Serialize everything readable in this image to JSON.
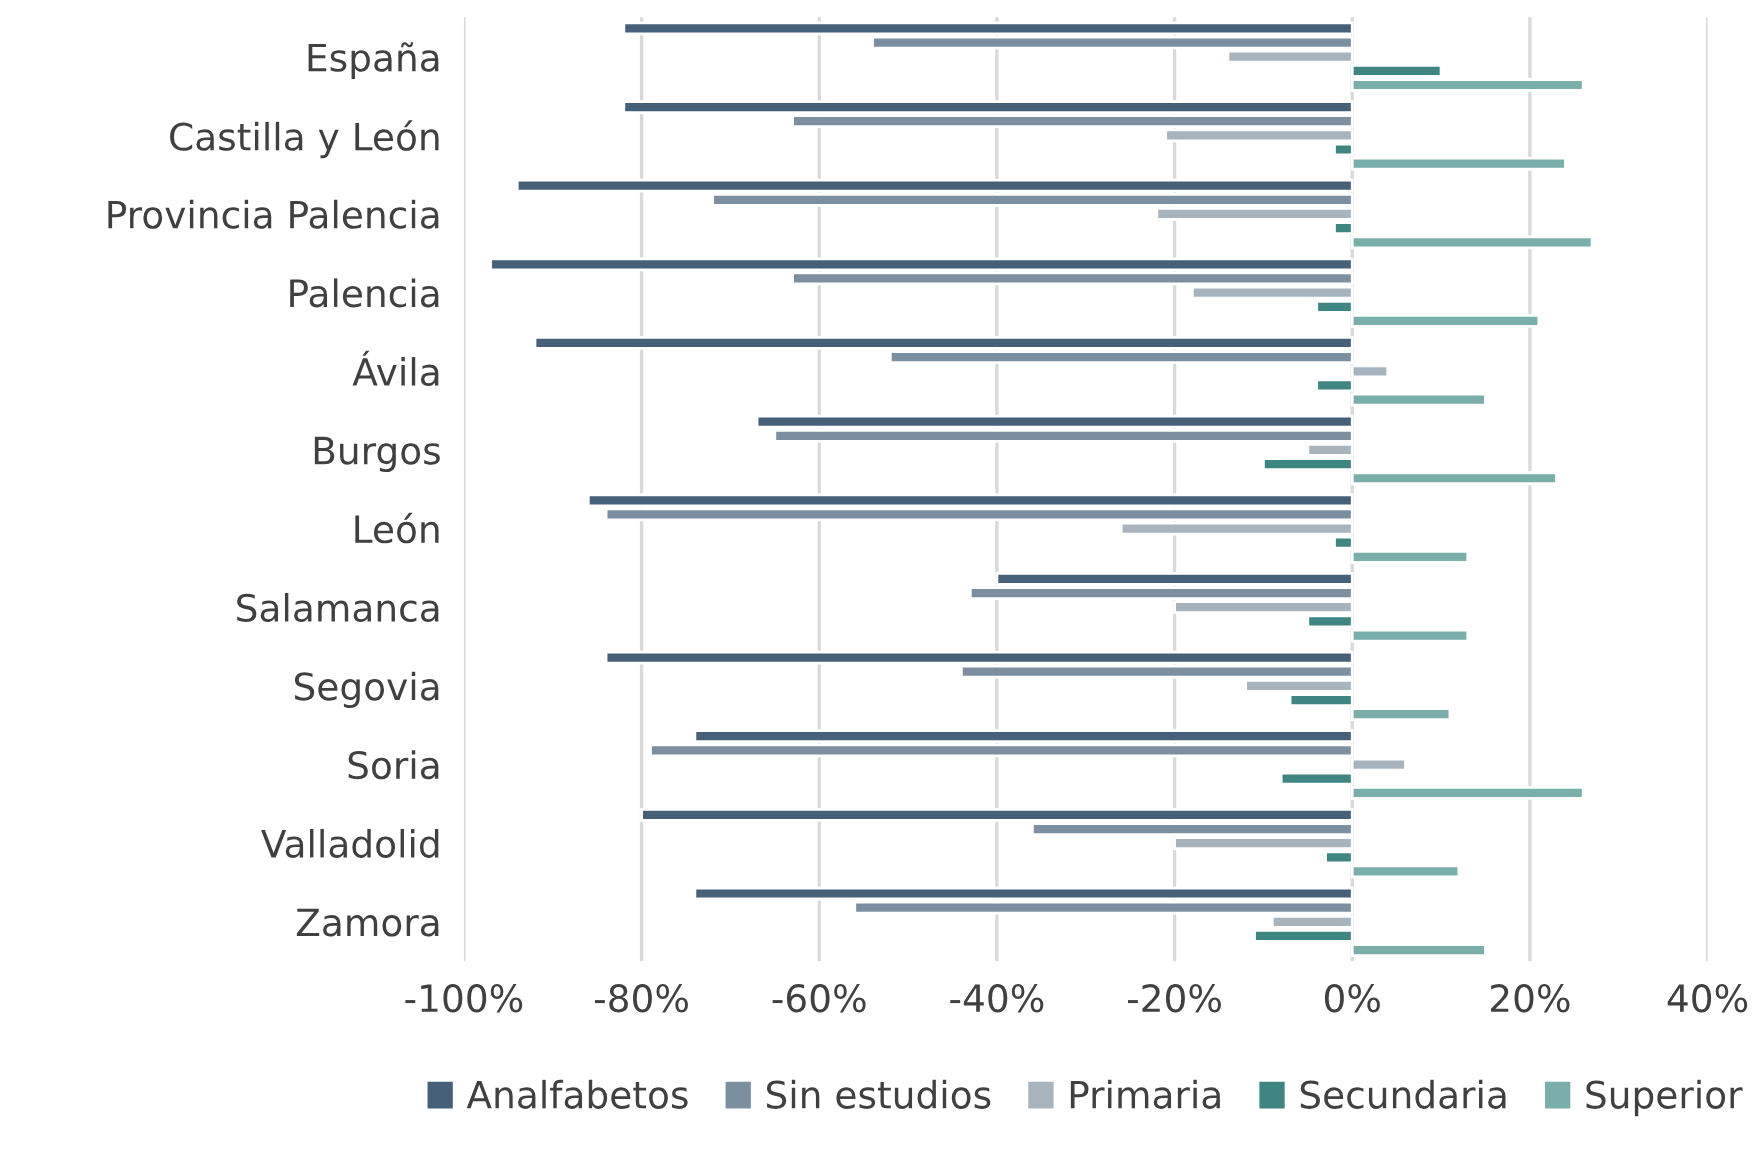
{
  "chart_data": {
    "type": "bar",
    "orientation": "horizontal",
    "categories": [
      "España",
      "Castilla y León",
      "Provincia Palencia",
      "Palencia",
      "Ávila",
      "Burgos",
      "León",
      "Salamanca",
      "Segovia",
      "Soria",
      "Valladolid",
      "Zamora"
    ],
    "series": [
      {
        "name": "Analfabetos",
        "color": "#46607a",
        "values": [
          -82,
          -82,
          -94,
          -97,
          -92,
          -67,
          -86,
          -40,
          -84,
          -74,
          -80,
          -74
        ]
      },
      {
        "name": "Sin estudios",
        "color": "#7b8fa1",
        "values": [
          -54,
          -63,
          -72,
          -63,
          -52,
          -65,
          -84,
          -43,
          -44,
          -79,
          -36,
          -56
        ]
      },
      {
        "name": "Primaria",
        "color": "#a7b4bd",
        "values": [
          -14,
          -21,
          -22,
          -18,
          4,
          -5,
          -26,
          -20,
          -12,
          6,
          -20,
          -9
        ]
      },
      {
        "name": "Secundaria",
        "color": "#3f8582",
        "values": [
          10,
          -2,
          -2,
          -4,
          -4,
          -10,
          -2,
          -5,
          -7,
          -8,
          -3,
          -11
        ]
      },
      {
        "name": "Superior",
        "color": "#7aaeaa",
        "values": [
          26,
          24,
          27,
          21,
          15,
          23,
          13,
          13,
          11,
          26,
          12,
          15
        ]
      }
    ],
    "xlim": [
      -100,
      40
    ],
    "xticks": [
      {
        "value": -100,
        "label": "-100%"
      },
      {
        "value": -80,
        "label": "-80%"
      },
      {
        "value": -60,
        "label": "-60%"
      },
      {
        "value": -40,
        "label": "-40%"
      },
      {
        "value": -20,
        "label": "-20%"
      },
      {
        "value": 0,
        "label": "0%"
      },
      {
        "value": 20,
        "label": "20%"
      },
      {
        "value": 40,
        "label": "40%"
      }
    ],
    "grid": "x",
    "legend": "bottom"
  }
}
